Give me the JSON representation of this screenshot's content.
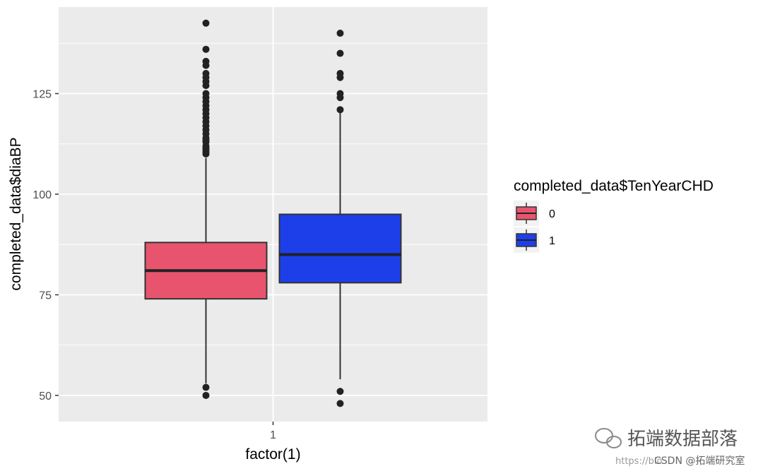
{
  "chart_data": {
    "type": "box",
    "title": "",
    "xlabel": "factor(1)",
    "ylabel": "completed_data$diaBP",
    "categories": [
      "1"
    ],
    "ylim": [
      43.5,
      146.5
    ],
    "yticks": [
      50,
      75,
      100,
      125
    ],
    "grid": true,
    "legend": {
      "title": "completed_data$TenYearCHD",
      "position": "right"
    },
    "series": [
      {
        "name": "0",
        "color": "#E8546E",
        "q1": 74,
        "median": 81,
        "q3": 88,
        "whisker_low": 53,
        "whisker_high": 109,
        "outliers": [
          50,
          52,
          110,
          110.5,
          111,
          111.5,
          112,
          113,
          113.5,
          114,
          115,
          116,
          117,
          118,
          119,
          120,
          121,
          122,
          123,
          124,
          125,
          127,
          128,
          129,
          130,
          132,
          133,
          136,
          142.5
        ]
      },
      {
        "name": "1",
        "color": "#1D3FEA",
        "q1": 78,
        "median": 85,
        "q3": 95,
        "whisker_low": 54,
        "whisker_high": 120.5,
        "outliers": [
          48,
          51,
          121,
          124,
          125,
          129,
          130,
          135,
          140
        ]
      }
    ]
  },
  "watermark": {
    "brand": "拓端数据部落",
    "url_fragment": "https://blo",
    "credit": "CSDN @拓端研究室"
  }
}
